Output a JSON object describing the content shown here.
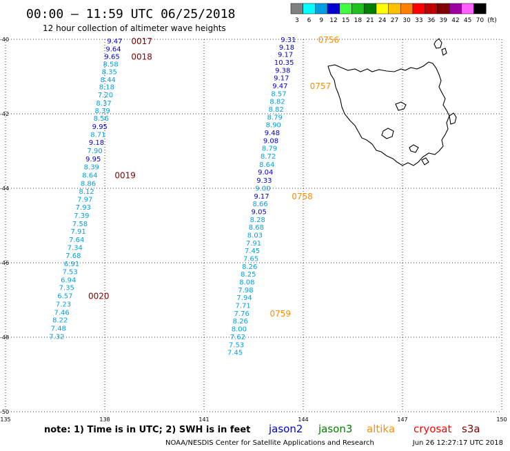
{
  "header": {
    "title": "00:00 – 11:59 UTC 06/25/2018",
    "subtitle": "12 hour collection of altimeter wave heights"
  },
  "colorbar": {
    "unit": "(ft)",
    "bins": [
      {
        "label": "3",
        "color": "#808080"
      },
      {
        "label": "6",
        "color": "#00ffff"
      },
      {
        "label": "9",
        "color": "#00a0e0"
      },
      {
        "label": "12",
        "color": "#0000d0"
      },
      {
        "label": "15",
        "color": "#40ff40"
      },
      {
        "label": "18",
        "color": "#20c020"
      },
      {
        "label": "21",
        "color": "#008000"
      },
      {
        "label": "24",
        "color": "#ffff00"
      },
      {
        "label": "27",
        "color": "#ffc000"
      },
      {
        "label": "30",
        "color": "#ff8000"
      },
      {
        "label": "33",
        "color": "#ff0000"
      },
      {
        "label": "36",
        "color": "#c00000"
      },
      {
        "label": "39",
        "color": "#800000"
      },
      {
        "label": "42",
        "color": "#a000a0"
      },
      {
        "label": "45",
        "color": "#ff60ff"
      },
      {
        "label": "70",
        "color": "#000000"
      }
    ]
  },
  "map": {
    "lon_range": [
      135,
      150
    ],
    "lat_range": [
      -50,
      -40
    ],
    "lon_ticks": [
      {
        "value": 135,
        "label": "135"
      },
      {
        "value": 138,
        "label": "138"
      },
      {
        "value": 141,
        "label": "141"
      },
      {
        "value": 144,
        "label": "144"
      },
      {
        "value": 147,
        "label": "147"
      },
      {
        "value": 150,
        "label": "150"
      }
    ],
    "lat_ticks": [
      {
        "value": -40,
        "label": "-40"
      },
      {
        "value": -42,
        "label": "-42"
      },
      {
        "value": -44,
        "label": "-44"
      },
      {
        "value": -46,
        "label": "-46"
      },
      {
        "value": -48,
        "label": "-48"
      },
      {
        "value": -50,
        "label": "-50"
      }
    ],
    "land_color": "#000000"
  },
  "tracks": [
    {
      "satellite": "track-1",
      "points": [
        {
          "lon": 138.3,
          "lat": -40.04,
          "value": "9.47",
          "color": "#0000d0"
        },
        {
          "lon": 138.26,
          "lat": -40.25,
          "value": "9.64",
          "color": "#0000d0"
        },
        {
          "lon": 138.22,
          "lat": -40.45,
          "value": "9.65",
          "color": "#0000d0"
        },
        {
          "lon": 138.18,
          "lat": -40.66,
          "value": "8.58",
          "color": "#00a0e0"
        },
        {
          "lon": 138.14,
          "lat": -40.86,
          "value": "8.35",
          "color": "#00a0e0"
        },
        {
          "lon": 138.1,
          "lat": -41.07,
          "value": "8.44",
          "color": "#00a0e0"
        },
        {
          "lon": 138.06,
          "lat": -41.27,
          "value": "8.18",
          "color": "#00a0e0"
        },
        {
          "lon": 138.02,
          "lat": -41.48,
          "value": "7.20",
          "color": "#00a0e0"
        },
        {
          "lon": 137.97,
          "lat": -41.7,
          "value": "8.37",
          "color": "#00a0e0"
        },
        {
          "lon": 137.93,
          "lat": -41.91,
          "value": "8.39",
          "color": "#00a0e0"
        },
        {
          "lon": 137.89,
          "lat": -42.11,
          "value": "8.56",
          "color": "#00a0e0"
        },
        {
          "lon": 137.85,
          "lat": -42.33,
          "value": "9.95",
          "color": "#0000d0"
        },
        {
          "lon": 137.8,
          "lat": -42.55,
          "value": "8.71",
          "color": "#00a0e0"
        },
        {
          "lon": 137.75,
          "lat": -42.76,
          "value": "9.18",
          "color": "#0000d0"
        },
        {
          "lon": 137.7,
          "lat": -42.98,
          "value": "7.90",
          "color": "#00a0e0"
        },
        {
          "lon": 137.65,
          "lat": -43.2,
          "value": "9.95",
          "color": "#0000d0"
        },
        {
          "lon": 137.6,
          "lat": -43.42,
          "value": "8.39",
          "color": "#00a0e0"
        },
        {
          "lon": 137.55,
          "lat": -43.64,
          "value": "8.64",
          "color": "#00a0e0"
        },
        {
          "lon": 137.5,
          "lat": -43.86,
          "value": "8.86",
          "color": "#00a0e0"
        },
        {
          "lon": 137.45,
          "lat": -44.07,
          "value": "8.12",
          "color": "#00a0e0"
        },
        {
          "lon": 137.4,
          "lat": -44.29,
          "value": "7.97",
          "color": "#00a0e0"
        },
        {
          "lon": 137.35,
          "lat": -44.5,
          "value": "7.93",
          "color": "#00a0e0"
        },
        {
          "lon": 137.3,
          "lat": -44.72,
          "value": "7.39",
          "color": "#00a0e0"
        },
        {
          "lon": 137.25,
          "lat": -44.94,
          "value": "7.58",
          "color": "#00a0e0"
        },
        {
          "lon": 137.2,
          "lat": -45.15,
          "value": "7.91",
          "color": "#00a0e0"
        },
        {
          "lon": 137.15,
          "lat": -45.37,
          "value": "7.64",
          "color": "#00a0e0"
        },
        {
          "lon": 137.1,
          "lat": -45.58,
          "value": "7.34",
          "color": "#00a0e0"
        },
        {
          "lon": 137.05,
          "lat": -45.8,
          "value": "7.68",
          "color": "#00a0e0"
        },
        {
          "lon": 137.0,
          "lat": -46.02,
          "value": "6.91",
          "color": "#00a0e0"
        },
        {
          "lon": 136.95,
          "lat": -46.23,
          "value": "7.53",
          "color": "#00a0e0"
        },
        {
          "lon": 136.9,
          "lat": -46.45,
          "value": "6.94",
          "color": "#00a0e0"
        },
        {
          "lon": 136.85,
          "lat": -46.66,
          "value": "7.35",
          "color": "#00a0e0"
        },
        {
          "lon": 136.8,
          "lat": -46.88,
          "value": "6.57",
          "color": "#00a0e0"
        },
        {
          "lon": 136.75,
          "lat": -47.1,
          "value": "7.23",
          "color": "#00a0e0"
        },
        {
          "lon": 136.7,
          "lat": -47.32,
          "value": "7.46",
          "color": "#00a0e0"
        },
        {
          "lon": 136.65,
          "lat": -47.53,
          "value": "8.22",
          "color": "#00a0e0"
        },
        {
          "lon": 136.6,
          "lat": -47.75,
          "value": "7.48",
          "color": "#00a0e0"
        },
        {
          "lon": 136.55,
          "lat": -47.97,
          "value": "7.32",
          "color": "#00a0e0"
        }
      ],
      "time_labels": [
        {
          "lon": 138.8,
          "lat": -40.04,
          "text": "0017",
          "color": "#800000"
        },
        {
          "lon": 138.8,
          "lat": -40.45,
          "text": "0018",
          "color": "#800000"
        },
        {
          "lon": 138.3,
          "lat": -43.64,
          "text": "0019",
          "color": "#800000"
        },
        {
          "lon": 137.5,
          "lat": -46.88,
          "text": "0020",
          "color": "#800000"
        }
      ]
    },
    {
      "satellite": "track-2",
      "points": [
        {
          "lon": 143.55,
          "lat": -40.0,
          "value": "9.31",
          "color": "#0000d0"
        },
        {
          "lon": 143.5,
          "lat": -40.2,
          "value": "9.18",
          "color": "#0000d0"
        },
        {
          "lon": 143.46,
          "lat": -40.4,
          "value": "9.17",
          "color": "#0000d0"
        },
        {
          "lon": 143.42,
          "lat": -40.61,
          "value": "10.35",
          "color": "#0000d0"
        },
        {
          "lon": 143.38,
          "lat": -40.82,
          "value": "9.38",
          "color": "#0000d0"
        },
        {
          "lon": 143.34,
          "lat": -41.03,
          "value": "9.17",
          "color": "#0000d0"
        },
        {
          "lon": 143.3,
          "lat": -41.24,
          "value": "9.47",
          "color": "#0000d0"
        },
        {
          "lon": 143.26,
          "lat": -41.45,
          "value": "8.57",
          "color": "#00a0e0"
        },
        {
          "lon": 143.22,
          "lat": -41.66,
          "value": "8.82",
          "color": "#00a0e0"
        },
        {
          "lon": 143.18,
          "lat": -41.87,
          "value": "8.82",
          "color": "#00a0e0"
        },
        {
          "lon": 143.14,
          "lat": -42.08,
          "value": "8.79",
          "color": "#00a0e0"
        },
        {
          "lon": 143.1,
          "lat": -42.29,
          "value": "8.90",
          "color": "#00a0e0"
        },
        {
          "lon": 143.06,
          "lat": -42.5,
          "value": "9.48",
          "color": "#0000d0"
        },
        {
          "lon": 143.02,
          "lat": -42.71,
          "value": "9.08",
          "color": "#0000d0"
        },
        {
          "lon": 142.98,
          "lat": -42.92,
          "value": "8.79",
          "color": "#00a0e0"
        },
        {
          "lon": 142.94,
          "lat": -43.13,
          "value": "8.72",
          "color": "#00a0e0"
        },
        {
          "lon": 142.9,
          "lat": -43.35,
          "value": "8.64",
          "color": "#00a0e0"
        },
        {
          "lon": 142.86,
          "lat": -43.56,
          "value": "9.04",
          "color": "#0000d0"
        },
        {
          "lon": 142.82,
          "lat": -43.78,
          "value": "9.33",
          "color": "#0000d0"
        },
        {
          "lon": 142.78,
          "lat": -43.99,
          "value": "9.00",
          "color": "#00a0e0"
        },
        {
          "lon": 142.74,
          "lat": -44.2,
          "value": "9.17",
          "color": "#0000d0"
        },
        {
          "lon": 142.7,
          "lat": -44.41,
          "value": "8.66",
          "color": "#00a0e0"
        },
        {
          "lon": 142.66,
          "lat": -44.62,
          "value": "9.05",
          "color": "#0000d0"
        },
        {
          "lon": 142.62,
          "lat": -44.83,
          "value": "8.28",
          "color": "#00a0e0"
        },
        {
          "lon": 142.58,
          "lat": -45.04,
          "value": "8.68",
          "color": "#00a0e0"
        },
        {
          "lon": 142.54,
          "lat": -45.25,
          "value": "8.03",
          "color": "#00a0e0"
        },
        {
          "lon": 142.5,
          "lat": -45.46,
          "value": "7.91",
          "color": "#00a0e0"
        },
        {
          "lon": 142.46,
          "lat": -45.67,
          "value": "7.45",
          "color": "#00a0e0"
        },
        {
          "lon": 142.42,
          "lat": -45.88,
          "value": "7.65",
          "color": "#00a0e0"
        },
        {
          "lon": 142.38,
          "lat": -46.09,
          "value": "8.26",
          "color": "#00a0e0"
        },
        {
          "lon": 142.34,
          "lat": -46.3,
          "value": "8.25",
          "color": "#00a0e0"
        },
        {
          "lon": 142.3,
          "lat": -46.51,
          "value": "8.08",
          "color": "#00a0e0"
        },
        {
          "lon": 142.26,
          "lat": -46.72,
          "value": "7.98",
          "color": "#00a0e0"
        },
        {
          "lon": 142.22,
          "lat": -46.93,
          "value": "7.94",
          "color": "#00a0e0"
        },
        {
          "lon": 142.18,
          "lat": -47.14,
          "value": "7.71",
          "color": "#00a0e0"
        },
        {
          "lon": 142.14,
          "lat": -47.35,
          "value": "7.76",
          "color": "#00a0e0"
        },
        {
          "lon": 142.1,
          "lat": -47.56,
          "value": "8.26",
          "color": "#00a0e0"
        },
        {
          "lon": 142.06,
          "lat": -47.77,
          "value": "8.00",
          "color": "#00a0e0"
        },
        {
          "lon": 142.02,
          "lat": -47.98,
          "value": "7.62",
          "color": "#00a0e0"
        },
        {
          "lon": 141.98,
          "lat": -48.19,
          "value": "7.53",
          "color": "#00a0e0"
        },
        {
          "lon": 141.94,
          "lat": -48.4,
          "value": "7.45",
          "color": "#00a0e0"
        }
      ],
      "time_labels": [
        {
          "lon": 144.45,
          "lat": -40.0,
          "text": "0756",
          "color": "#ff8c00"
        },
        {
          "lon": 144.2,
          "lat": -41.24,
          "text": "0757",
          "color": "#ff8c00"
        },
        {
          "lon": 143.65,
          "lat": -44.2,
          "text": "0758",
          "color": "#ff8c00"
        },
        {
          "lon": 142.99,
          "lat": -47.35,
          "text": "0759",
          "color": "#ff8c00"
        }
      ]
    }
  ],
  "footer": {
    "note": "note:  1) Time is in UTC;  2) SWH is in feet",
    "credit": "NOAA/NESDIS Center for Satellite Applications and Research",
    "timestamp": "Jun 26 12:27:17 UTC 2018",
    "legend": [
      {
        "label": "jason2",
        "color": "#0000d0"
      },
      {
        "label": "jason3",
        "color": "#008000"
      },
      {
        "label": "altika",
        "color": "#ff8c00"
      },
      {
        "label": "cryosat",
        "color": "#ff0000"
      },
      {
        "label": "s3a",
        "color": "#800000"
      }
    ]
  }
}
